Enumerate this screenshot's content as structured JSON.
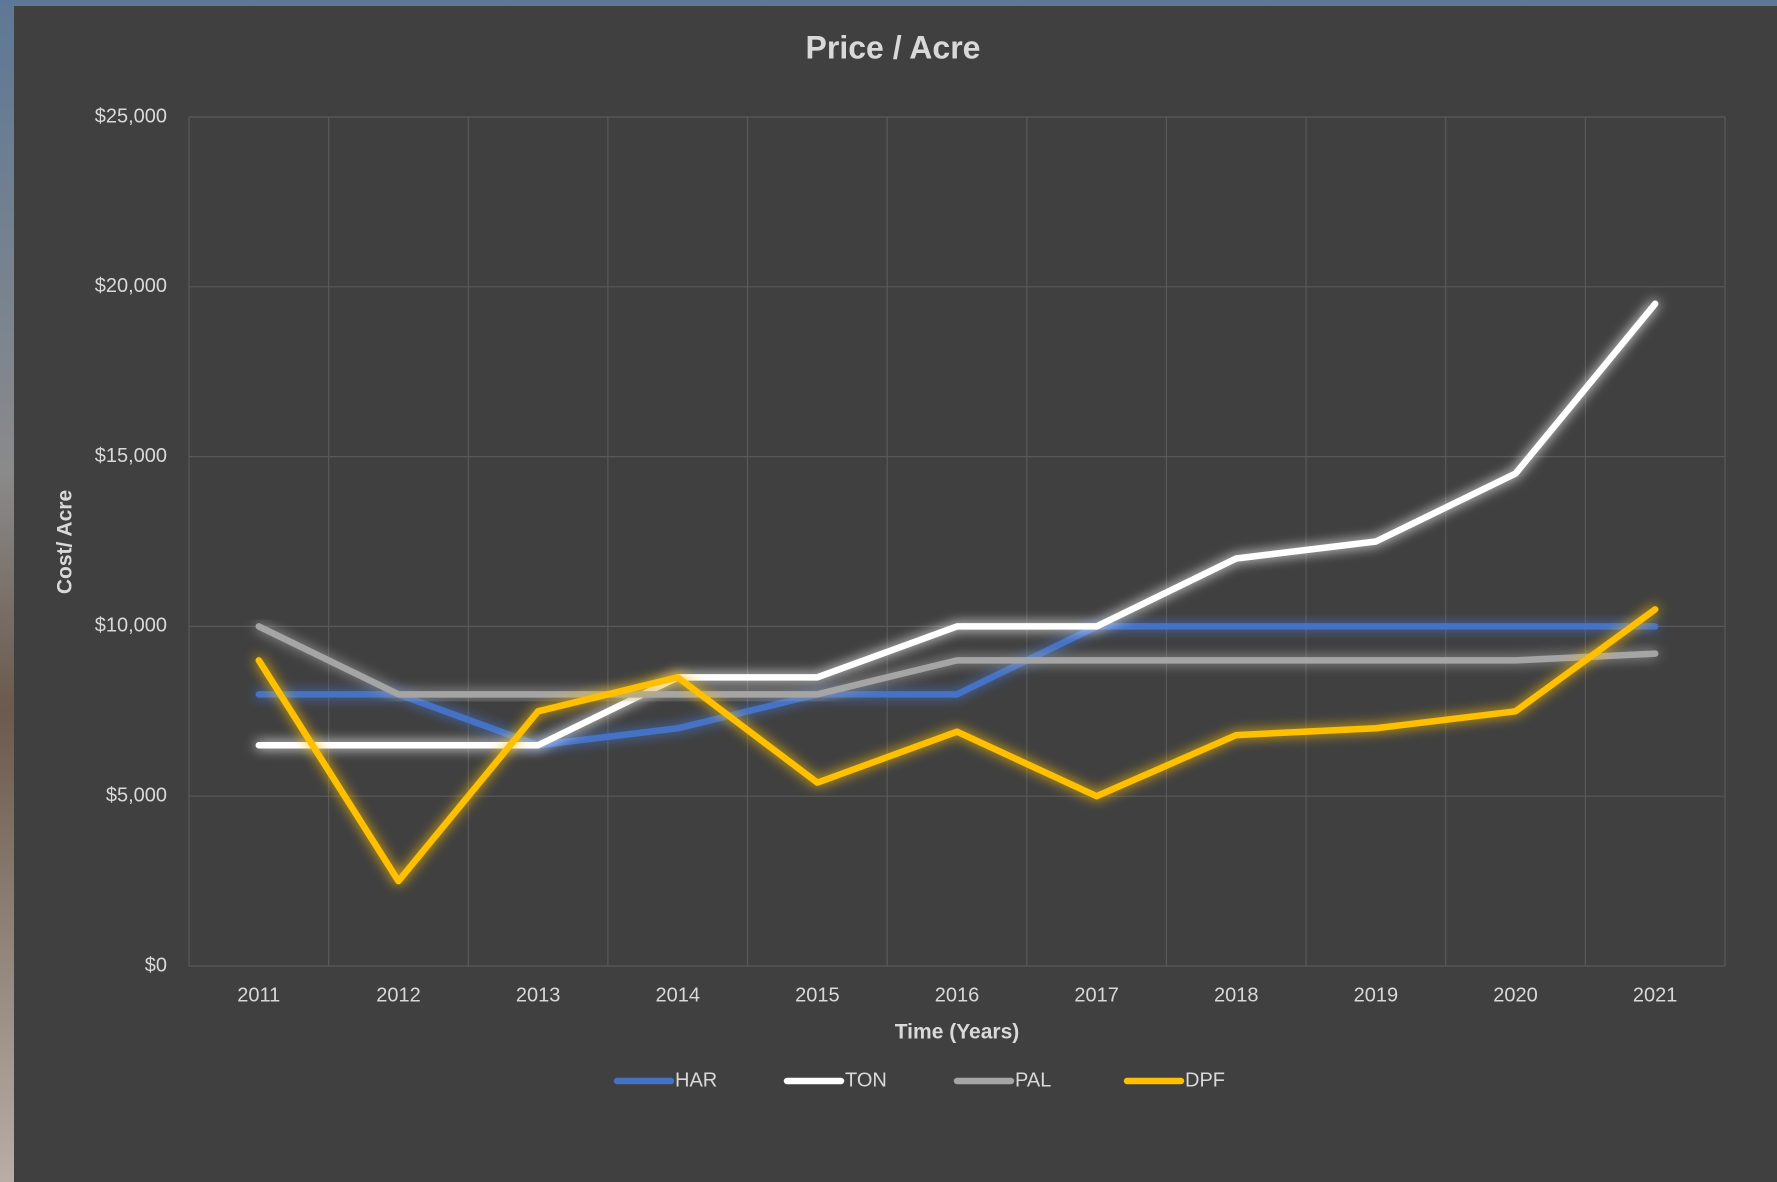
{
  "chart_data": {
    "type": "line",
    "title": "Price / Acre",
    "x_label": "Time (Years)",
    "y_label": "Cost/ Acre",
    "categories": [
      "2011",
      "2012",
      "2013",
      "2014",
      "2015",
      "2016",
      "2017",
      "2018",
      "2019",
      "2020",
      "2021"
    ],
    "series": [
      {
        "name": "HAR",
        "color": "#4472c4",
        "values": [
          8000,
          8000,
          6500,
          7000,
          8000,
          8000,
          10000,
          10000,
          10000,
          10000,
          10000
        ]
      },
      {
        "name": "TON",
        "color": "#ffffff",
        "values": [
          6500,
          6500,
          6500,
          8500,
          8500,
          10000,
          10000,
          12000,
          12500,
          14500,
          19500
        ]
      },
      {
        "name": "PAL",
        "color": "#a5a5a5",
        "values": [
          10000,
          8000,
          8000,
          8000,
          8000,
          9000,
          9000,
          9000,
          9000,
          9000,
          9200
        ]
      },
      {
        "name": "DPF",
        "color": "#ffc000",
        "values": [
          9000,
          2500,
          7500,
          8500,
          5400,
          6900,
          5000,
          6800,
          7000,
          7500,
          10500
        ]
      }
    ],
    "ylim": [
      0,
      25000
    ],
    "yticks": [
      {
        "value": 0,
        "label": "$0"
      },
      {
        "value": 5000,
        "label": "$5,000"
      },
      {
        "value": 10000,
        "label": "$10,000"
      },
      {
        "value": 15000,
        "label": "$15,000"
      },
      {
        "value": 20000,
        "label": "$20,000"
      },
      {
        "value": 25000,
        "label": "$25,000"
      }
    ],
    "grid": true,
    "legend": "bottom"
  }
}
